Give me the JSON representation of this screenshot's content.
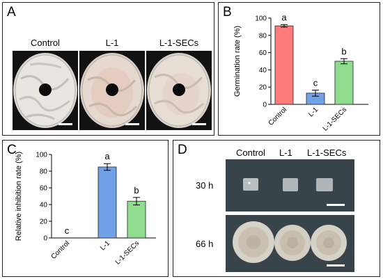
{
  "panels": {
    "a": {
      "letter": "A",
      "plates": [
        {
          "label": "Control"
        },
        {
          "label": "L-1"
        },
        {
          "label": "L-1-SECs"
        }
      ]
    },
    "d": {
      "letter": "D",
      "columns": [
        "Control",
        "L-1",
        "L-1-SECs"
      ],
      "rows": [
        {
          "label": "30 h"
        },
        {
          "label": "66 h"
        }
      ]
    }
  },
  "chart_data": [
    {
      "panel_letter": "B",
      "type": "bar",
      "ylabel": "Germination rate (%)",
      "ylim": [
        0,
        100
      ],
      "yticks": [
        0,
        20,
        40,
        60,
        80,
        100
      ],
      "categories": [
        "Control",
        "L-1",
        "L-1-SECs"
      ],
      "values": [
        91,
        13,
        50
      ],
      "errors": [
        1.5,
        3.5,
        3
      ],
      "letters": [
        "a",
        "c",
        "b"
      ],
      "colors": [
        "#ff7b7b",
        "#6fa0e8",
        "#8fdc8f"
      ]
    },
    {
      "panel_letter": "C",
      "type": "bar",
      "ylabel": "Relative inhibition rate (%)",
      "ylim": [
        0,
        100
      ],
      "yticks": [
        0,
        20,
        40,
        60,
        80,
        100
      ],
      "categories": [
        "Control",
        "L-1",
        "L-1-SECs"
      ],
      "values": [
        0,
        85,
        44
      ],
      "errors": [
        0,
        4,
        4.5
      ],
      "letters": [
        "c",
        "a",
        "b"
      ],
      "colors": [
        "#ff7b7b",
        "#6fa0e8",
        "#8fdc8f"
      ]
    }
  ]
}
